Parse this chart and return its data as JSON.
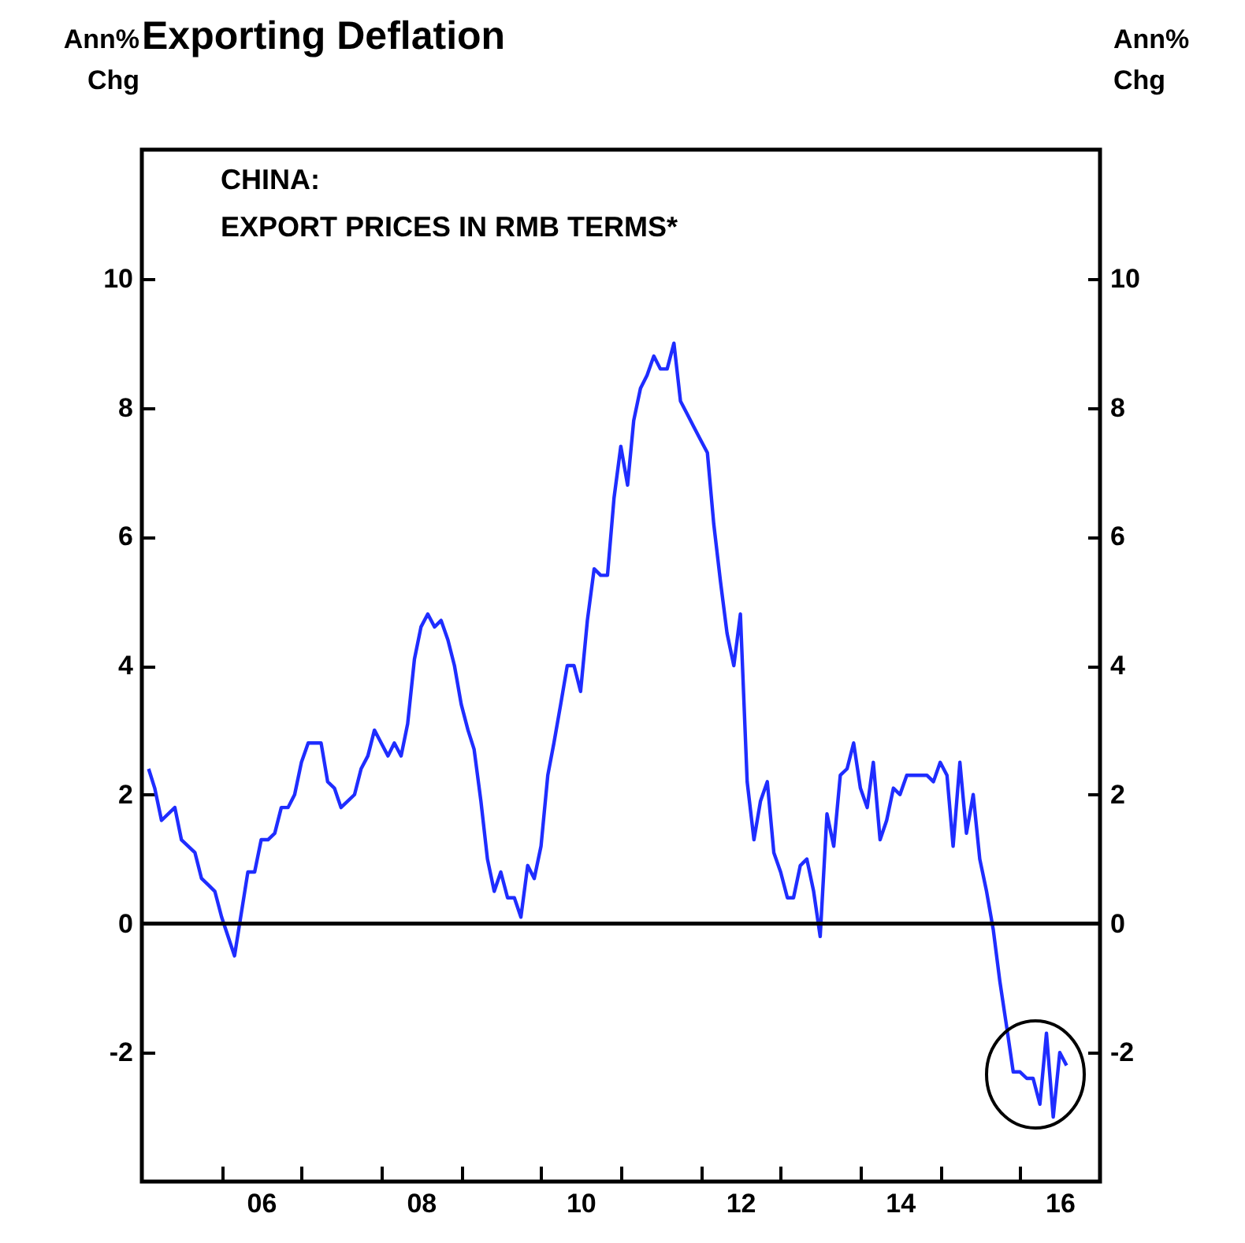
{
  "chart_data": {
    "type": "line",
    "title": "Exporting Deflation",
    "ylabel": "Ann% Chg",
    "y2label": "Ann% Chg",
    "annotations": [
      "CHINA:",
      "EXPORT PRICES IN RMB TERMS*"
    ],
    "xlim": [
      "2005-01",
      "2017-01"
    ],
    "xticks": [
      {
        "value": "2006-01",
        "label": null
      },
      {
        "value": "2007-01",
        "label": null
      },
      {
        "value": "2008-01",
        "label": null
      },
      {
        "value": "2009-01",
        "label": null
      },
      {
        "value": "2010-01",
        "label": null
      },
      {
        "value": "2011-01",
        "label": null
      },
      {
        "value": "2012-01",
        "label": null
      },
      {
        "value": "2013-01",
        "label": null
      },
      {
        "value": "2014-01",
        "label": null
      },
      {
        "value": "2015-01",
        "label": null
      },
      {
        "value": "2016-01",
        "label": null
      },
      {
        "value": "2006-07",
        "label": "06"
      },
      {
        "value": "2008-07",
        "label": "08"
      },
      {
        "value": "2010-07",
        "label": "10"
      },
      {
        "value": "2012-07",
        "label": "12"
      },
      {
        "value": "2014-07",
        "label": "14"
      },
      {
        "value": "2016-07",
        "label": "16"
      }
    ],
    "ylim": [
      -4,
      12
    ],
    "yticks": [
      -2,
      0,
      2,
      4,
      6,
      8,
      10
    ],
    "y2lim": [
      -4,
      12
    ],
    "y2ticks": [
      -2,
      0,
      2,
      4,
      6,
      8,
      10
    ],
    "grid": false,
    "ref_lines": [
      {
        "axis": "y",
        "value": 0,
        "color": "#000000"
      }
    ],
    "series": [
      {
        "color": "#1f2dff",
        "x": [
          "2005-02",
          "2005-03",
          "2005-04",
          "2005-06",
          "2005-07",
          "2005-09",
          "2005-10",
          "2005-11",
          "2005-12",
          "2006-01",
          "2006-03",
          "2006-05",
          "2006-06",
          "2006-07",
          "2006-08",
          "2006-09",
          "2006-10",
          "2006-11",
          "2006-12",
          "2007-01",
          "2007-02",
          "2007-04",
          "2007-05",
          "2007-06",
          "2007-07",
          "2007-09",
          "2007-10",
          "2007-11",
          "2007-12",
          "2008-01",
          "2008-02",
          "2008-03",
          "2008-04",
          "2008-05",
          "2008-06",
          "2008-07",
          "2008-08",
          "2008-09",
          "2008-10",
          "2008-11",
          "2008-12",
          "2009-01",
          "2009-02",
          "2009-03",
          "2009-04",
          "2009-05",
          "2009-06",
          "2009-07",
          "2009-08",
          "2009-09",
          "2009-10",
          "2009-11",
          "2009-12",
          "2010-01",
          "2010-02",
          "2010-03",
          "2010-04",
          "2010-05",
          "2010-06",
          "2010-07",
          "2010-08",
          "2010-09",
          "2010-10",
          "2010-11",
          "2010-12",
          "2011-01",
          "2011-02",
          "2011-03",
          "2011-04",
          "2011-05",
          "2011-06",
          "2011-07",
          "2011-08",
          "2011-09",
          "2011-10",
          "2011-11",
          "2011-12",
          "2012-01",
          "2012-02",
          "2012-03",
          "2012-04",
          "2012-05",
          "2012-06",
          "2012-07",
          "2012-08",
          "2012-09",
          "2012-10",
          "2012-11",
          "2012-12",
          "2013-01",
          "2013-02",
          "2013-03",
          "2013-04",
          "2013-05",
          "2013-06",
          "2013-07",
          "2013-08",
          "2013-09",
          "2013-10",
          "2013-11",
          "2013-12",
          "2014-01",
          "2014-02",
          "2014-03",
          "2014-04",
          "2014-05",
          "2014-06",
          "2014-07",
          "2014-08",
          "2014-09",
          "2014-10",
          "2014-11",
          "2014-12",
          "2015-01",
          "2015-02",
          "2015-03",
          "2015-04",
          "2015-05",
          "2015-06",
          "2015-07",
          "2015-08",
          "2015-09",
          "2015-10",
          "2015-11",
          "2015-12",
          "2016-01",
          "2016-02",
          "2016-03",
          "2016-04",
          "2016-05",
          "2016-06",
          "2016-07",
          "2016-08"
        ],
        "values": [
          2.4,
          2.1,
          1.6,
          1.8,
          1.3,
          1.1,
          0.7,
          0.6,
          0.5,
          0.1,
          -0.5,
          0.8,
          0.8,
          1.3,
          1.3,
          1.4,
          1.8,
          1.8,
          2.0,
          2.5,
          2.8,
          2.8,
          2.2,
          2.1,
          1.8,
          2.0,
          2.4,
          2.6,
          3.0,
          2.8,
          2.6,
          2.8,
          2.6,
          3.1,
          4.1,
          4.6,
          4.8,
          4.6,
          4.7,
          4.4,
          4.0,
          3.4,
          3.0,
          2.7,
          1.9,
          1.0,
          0.5,
          0.8,
          0.4,
          0.4,
          0.1,
          0.9,
          0.7,
          1.2,
          2.3,
          2.8,
          3.4,
          4.0,
          4.0,
          3.6,
          4.7,
          5.5,
          5.4,
          5.4,
          6.6,
          7.4,
          6.8,
          7.8,
          8.3,
          8.5,
          8.8,
          8.6,
          8.6,
          9.0,
          8.1,
          7.9,
          7.7,
          7.5,
          7.3,
          6.2,
          5.3,
          4.5,
          4.0,
          4.8,
          2.2,
          1.3,
          1.9,
          2.2,
          1.1,
          0.8,
          0.4,
          0.4,
          0.9,
          1.0,
          0.5,
          -0.2,
          1.7,
          1.2,
          2.3,
          2.4,
          2.8,
          2.1,
          1.8,
          2.5,
          1.3,
          1.6,
          2.1,
          2.0,
          2.3,
          2.3,
          2.3,
          2.3,
          2.2,
          2.5,
          2.3,
          1.2,
          2.5,
          1.4,
          2.0,
          1.0,
          0.5,
          -0.1,
          -0.9,
          -1.6,
          -2.3,
          -2.3,
          -2.4,
          -2.4,
          -2.8,
          -1.7,
          -3.0,
          -2.0,
          -2.2
        ]
      }
    ]
  }
}
